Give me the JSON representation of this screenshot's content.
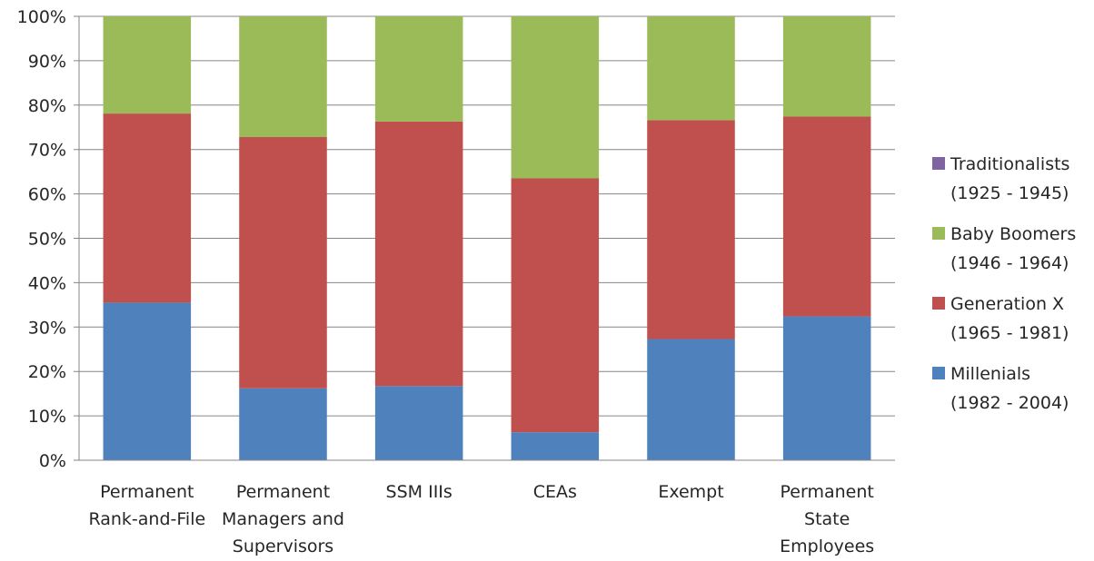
{
  "chart_data": {
    "type": "bar",
    "stacked": true,
    "percent_stacked": true,
    "categories": [
      [
        "Permanent",
        "Rank-and-File"
      ],
      [
        "Permanent",
        "Managers and",
        "Supervisors"
      ],
      [
        "SSM IIIs"
      ],
      [
        "CEAs"
      ],
      [
        "Exempt"
      ],
      [
        "Permanent",
        "State",
        "Employees"
      ]
    ],
    "series": [
      {
        "name": [
          "Millenials",
          "(1982 - 2004)"
        ],
        "color": "#4f81bd",
        "values": [
          35.5,
          16.2,
          16.7,
          6.3,
          27.3,
          32.4
        ]
      },
      {
        "name": [
          "Generation X",
          "(1965 - 1981)"
        ],
        "color": "#c0504d",
        "values": [
          42.6,
          56.6,
          59.6,
          57.2,
          49.3,
          45.0
        ]
      },
      {
        "name": [
          "Baby Boomers",
          "(1946 - 1964)"
        ],
        "color": "#9bbb59",
        "values": [
          21.9,
          27.2,
          23.7,
          36.5,
          23.4,
          22.6
        ]
      },
      {
        "name": [
          "Traditionalists",
          "(1925 - 1945)"
        ],
        "color": "#8064a2",
        "values": [
          0,
          0,
          0,
          0,
          0,
          0
        ]
      }
    ],
    "ylim": [
      0,
      100
    ],
    "yticks": [
      "0%",
      "10%",
      "20%",
      "30%",
      "40%",
      "50%",
      "60%",
      "70%",
      "80%",
      "90%",
      "100%"
    ],
    "grid": true,
    "legend_position": "right"
  }
}
